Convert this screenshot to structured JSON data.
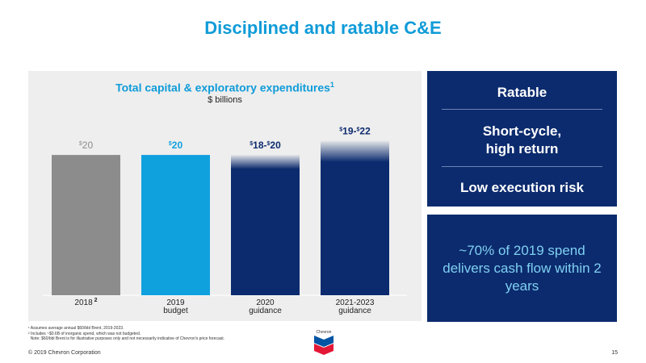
{
  "slide": {
    "title": "Disciplined and ratable C&E",
    "copyright": "© 2019 Chevron Corporation",
    "page_number": "15"
  },
  "chart_data": {
    "type": "bar",
    "title": "Total capital & exploratory expenditures",
    "title_superscript": "1",
    "subtitle": "$ billions",
    "ylim": [
      0,
      23
    ],
    "grid": false,
    "legend": "none",
    "bars": [
      {
        "category": "2018",
        "category_sup": "2",
        "category_sub": "",
        "low": 20,
        "high": 20,
        "label_parts": [
          "$",
          "20"
        ],
        "color": "#8c8c8c",
        "label_color": "#8c8c8c",
        "faded_top": false
      },
      {
        "category": "2019",
        "category_sup": "",
        "category_sub": "budget",
        "low": 20,
        "high": 20,
        "label_parts": [
          "$",
          "20"
        ],
        "color": "#0fa0de",
        "label_color": "#0fa0de",
        "faded_top": false
      },
      {
        "category": "2020",
        "category_sup": "",
        "category_sub": "guidance",
        "low": 18,
        "high": 20,
        "label_parts": [
          "$",
          "18-",
          "$",
          "20"
        ],
        "color": "#0c2b6e",
        "label_color": "#0c2b6e",
        "faded_top": true
      },
      {
        "category": "2021-2023",
        "category_sup": "",
        "category_sub": "guidance",
        "low": 19,
        "high": 22,
        "label_parts": [
          "$",
          "19-",
          "$",
          "22"
        ],
        "color": "#0c2b6e",
        "label_color": "#0c2b6e",
        "faded_top": true
      }
    ]
  },
  "sidebar": {
    "items": [
      "Ratable",
      "Short-cycle,\nhigh return",
      "Low execution risk"
    ],
    "callout": "~70% of 2019 spend delivers cash flow within 2 years"
  },
  "footnotes": [
    "¹ Assumes average annual $60/bbl Brent, 2019-2023.",
    "² Includes ~$0.6B of inorganic spend, which was not budgeted.",
    "  Note: $60/bbl Brent is for illustrative purposes only and not necessarily indicative of Chevron's price forecast."
  ],
  "logo": {
    "name": "chevron-logo-icon",
    "text": "Chevron",
    "colors": {
      "red": "#e21836",
      "blue": "#0054a4"
    }
  }
}
